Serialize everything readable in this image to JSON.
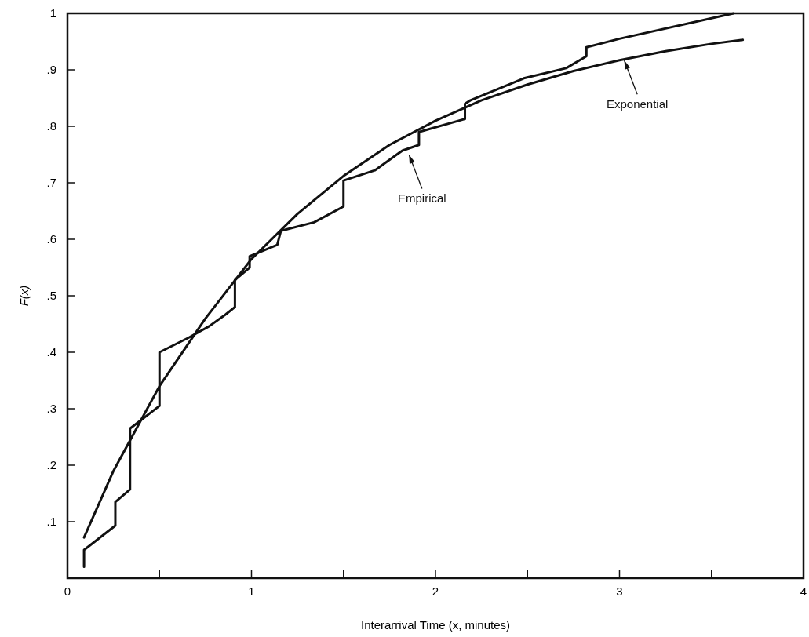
{
  "chart_data": {
    "type": "line",
    "xlabel": "Interarrival Time (x, minutes)",
    "ylabel": "F(x)",
    "xlim": [
      0,
      4
    ],
    "ylim": [
      0,
      1
    ],
    "xticks": [
      0,
      {
        "value": 0.5,
        "label": null
      },
      1,
      {
        "value": 1.5,
        "label": null
      },
      2,
      {
        "value": 2.5,
        "label": null
      },
      3,
      {
        "value": 3.5,
        "label": null
      },
      4
    ],
    "yticks": [
      {
        "value": 0.1,
        "label": ".1"
      },
      {
        "value": 0.2,
        "label": ".2"
      },
      {
        "value": 0.3,
        "label": ".3"
      },
      {
        "value": 0.4,
        "label": ".4"
      },
      {
        "value": 0.5,
        "label": ".5"
      },
      {
        "value": 0.6,
        "label": ".6"
      },
      {
        "value": 0.7,
        "label": ".7"
      },
      {
        "value": 0.8,
        "label": ".8"
      },
      {
        "value": 0.9,
        "label": ".9"
      },
      1
    ],
    "grid": false,
    "marker": "none",
    "line_style": "solid",
    "series": [
      {
        "color": "#111111",
        "x": [
          0.09,
          0.09,
          0.26,
          0.26,
          0.34,
          0.34,
          0.5,
          0.5,
          0.66,
          0.77,
          0.86,
          0.91,
          0.91,
          0.99,
          0.99,
          1.14,
          1.16,
          1.34,
          1.5,
          1.5,
          1.67,
          1.82,
          1.91,
          1.91,
          2.16,
          2.16,
          2.19,
          2.48,
          2.71,
          2.82,
          2.82,
          3.0,
          3.62
        ],
        "values": [
          0.02,
          0.05,
          0.093,
          0.135,
          0.157,
          0.265,
          0.305,
          0.4,
          0.426,
          0.446,
          0.467,
          0.48,
          0.528,
          0.55,
          0.57,
          0.59,
          0.615,
          0.63,
          0.658,
          0.704,
          0.722,
          0.757,
          0.767,
          0.79,
          0.813,
          0.84,
          0.846,
          0.885,
          0.903,
          0.924,
          0.94,
          0.955,
          1.0
        ]
      },
      {
        "color": "#111111",
        "x": [
          0.09,
          0.25,
          0.5,
          0.75,
          1.0,
          1.25,
          1.5,
          1.75,
          2.0,
          2.25,
          2.5,
          2.75,
          3.0,
          3.25,
          3.5,
          3.67
        ],
        "values": [
          0.072,
          0.19,
          0.34,
          0.46,
          0.565,
          0.645,
          0.712,
          0.767,
          0.81,
          0.846,
          0.874,
          0.898,
          0.917,
          0.933,
          0.946,
          0.953
        ]
      }
    ],
    "annotations": [
      {
        "text": "Empirical",
        "x": 1.85,
        "y": 0.755
      },
      {
        "text": "Exponential",
        "x": 3.02,
        "y": 0.922
      }
    ]
  }
}
